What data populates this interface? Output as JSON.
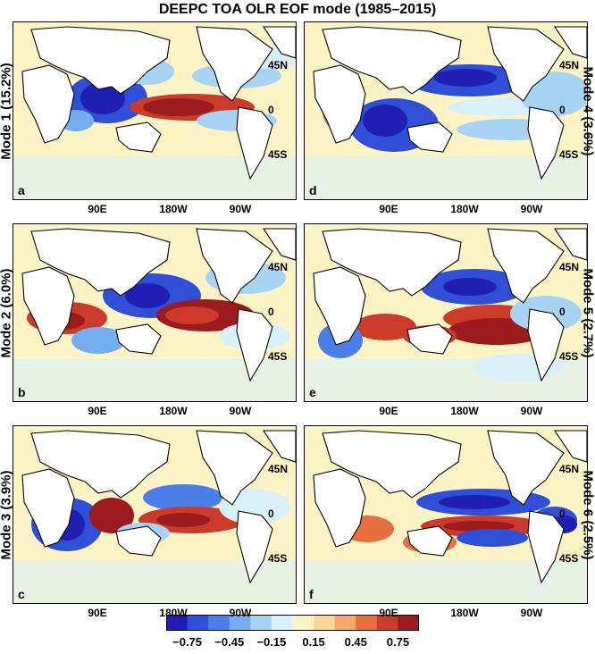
{
  "title": "DEEPC TOA OLR EOF mode (1985–2015)",
  "lat_labels": [
    "45N",
    "0",
    "45S"
  ],
  "lon_labels": [
    "90E",
    "180W",
    "90W"
  ],
  "panels": [
    {
      "letter": "a",
      "mode": "Mode 1 (15.2%)",
      "side": "left"
    },
    {
      "letter": "d",
      "mode": "Mode 4 (3.6%)",
      "side": "right"
    },
    {
      "letter": "b",
      "mode": "Mode 2 (6.0%)",
      "side": "left"
    },
    {
      "letter": "e",
      "mode": "Mode 5 (2.7%)",
      "side": "right"
    },
    {
      "letter": "c",
      "mode": "Mode 3 (3.9%)",
      "side": "left"
    },
    {
      "letter": "f",
      "mode": "Mode 6 (2.5%)",
      "side": "right"
    }
  ],
  "colorbar": {
    "ticks": [
      "−0.75",
      "−0.45",
      "−0.15",
      "0.15",
      "0.45",
      "0.75"
    ],
    "colors": [
      "#1f1fb4",
      "#2e4fd6",
      "#4a7fe8",
      "#74aef0",
      "#a8d4f4",
      "#d8f0f8",
      "#fdf4c6",
      "#fbd79a",
      "#f6a86a",
      "#e8703f",
      "#cc3b2a",
      "#9b1b1e"
    ]
  }
}
